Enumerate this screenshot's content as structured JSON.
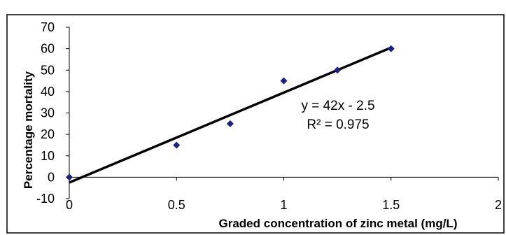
{
  "chart_data": {
    "type": "scatter",
    "title": "",
    "xlabel": "Graded concentration of zinc metal (mg/L)",
    "ylabel": "Percentage mortality",
    "xlim": [
      0,
      2
    ],
    "ylim": [
      -10,
      70
    ],
    "x_ticks": [
      "0",
      "0.5",
      "1",
      "1.5",
      "2"
    ],
    "y_ticks": [
      "-10",
      "0",
      "10",
      "20",
      "30",
      "40",
      "50",
      "60",
      "70"
    ],
    "grid": false,
    "legend": "none",
    "series": [
      {
        "x": [
          0,
          0.5,
          0.75,
          1.0,
          1.25,
          1.5
        ],
        "y": [
          0,
          15,
          25,
          45,
          50,
          60
        ],
        "marker": "diamond",
        "color": "#1f1f8a"
      }
    ],
    "trendline": {
      "slope": 42,
      "intercept": -2.5,
      "x_range": [
        0,
        1.5
      ],
      "color": "#000000",
      "equation": "y = 42x - 2.5",
      "r_squared": "R² = 0.975"
    }
  }
}
